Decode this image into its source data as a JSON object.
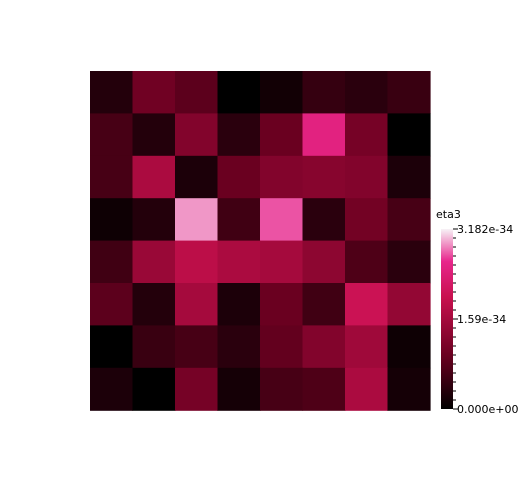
{
  "chart_data": {
    "type": "heatmap",
    "rows": 8,
    "cols": 8,
    "colormap": [
      "#000000",
      "#6a0020",
      "#c8104e",
      "#e8268c",
      "#f7f2f6"
    ],
    "values": [
      [
        0.1,
        0.32,
        0.26,
        0.0,
        0.05,
        0.15,
        0.12,
        0.16
      ],
      [
        0.2,
        0.1,
        0.38,
        0.12,
        0.3,
        0.78,
        0.34,
        0.0
      ],
      [
        0.2,
        0.52,
        0.08,
        0.3,
        0.38,
        0.4,
        0.38,
        0.08
      ],
      [
        0.04,
        0.1,
        0.92,
        0.18,
        0.86,
        0.12,
        0.33,
        0.2
      ],
      [
        0.18,
        0.46,
        0.58,
        0.52,
        0.5,
        0.42,
        0.22,
        0.12
      ],
      [
        0.26,
        0.1,
        0.5,
        0.08,
        0.3,
        0.18,
        0.64,
        0.44
      ],
      [
        0.0,
        0.16,
        0.2,
        0.12,
        0.28,
        0.38,
        0.48,
        0.04
      ],
      [
        0.08,
        0.0,
        0.34,
        0.06,
        0.2,
        0.22,
        0.52,
        0.06
      ]
    ],
    "colorbar": {
      "title": "eta3",
      "max_label": "3.182e-34",
      "mid_label": "1.59e-34",
      "min_label": "0.000e+00"
    }
  }
}
